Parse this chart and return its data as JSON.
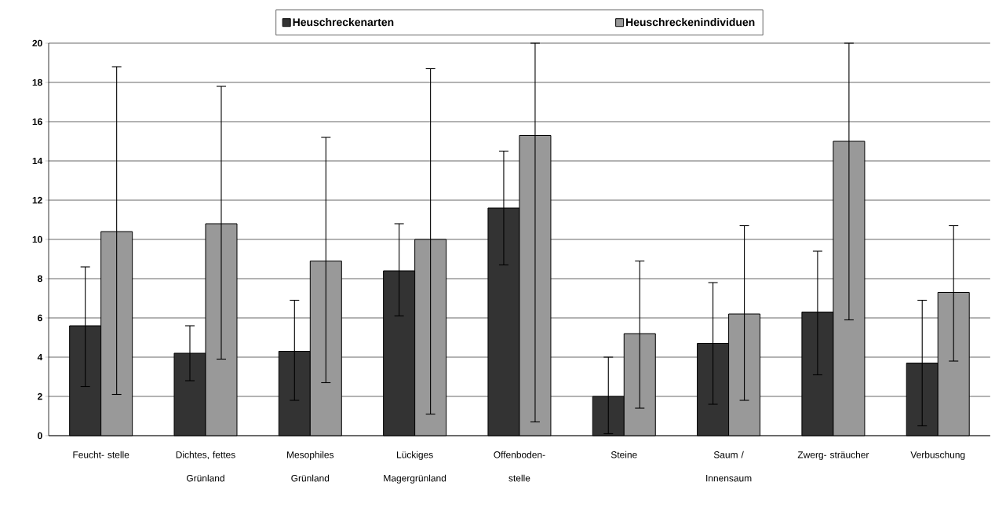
{
  "chart_data": {
    "type": "bar",
    "categories": [
      "Feucht- stelle",
      "Dichtes, fettes Grünland",
      "Mesophiles Grünland",
      "Lückiges Magergrünland",
      "Offenboden- stelle",
      "Steine",
      "Saum / Innensaum",
      "Zwerg- sträucher",
      "Verbuschung"
    ],
    "series": [
      {
        "name": "Heuschreckenarten",
        "color": "#333333",
        "values": [
          5.6,
          4.2,
          4.3,
          8.4,
          11.6,
          2.0,
          4.7,
          6.3,
          3.7
        ],
        "errors": [
          [
            2.5,
            8.6
          ],
          [
            2.8,
            5.6
          ],
          [
            1.8,
            6.9
          ],
          [
            6.1,
            10.8
          ],
          [
            8.7,
            14.5
          ],
          [
            0.1,
            4.0
          ],
          [
            1.6,
            7.8
          ],
          [
            3.1,
            9.4
          ],
          [
            0.5,
            6.9
          ]
        ]
      },
      {
        "name": "Heuschreckenindividuen",
        "color": "#999999",
        "values": [
          10.4,
          10.8,
          8.9,
          10.0,
          15.3,
          5.2,
          6.2,
          15.0,
          7.3
        ],
        "errors": [
          [
            2.1,
            18.8
          ],
          [
            3.9,
            17.8
          ],
          [
            2.7,
            15.2
          ],
          [
            1.1,
            18.7
          ],
          [
            0.7,
            20
          ],
          [
            1.4,
            8.9
          ],
          [
            1.8,
            10.7
          ],
          [
            5.9,
            20
          ],
          [
            3.8,
            10.7
          ]
        ]
      }
    ],
    "ylim": [
      0,
      20
    ],
    "yticks": [
      0,
      2,
      4,
      6,
      8,
      10,
      12,
      14,
      16,
      18,
      20
    ],
    "grid": "y",
    "legend": "top"
  }
}
